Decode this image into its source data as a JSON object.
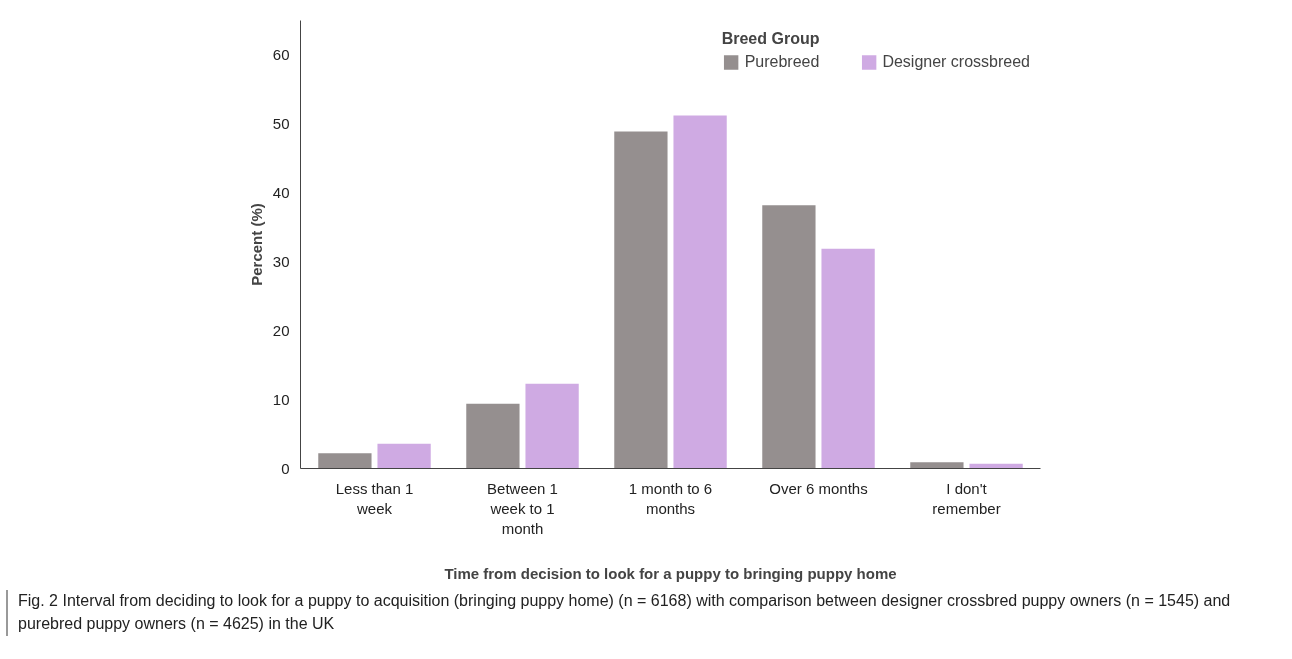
{
  "chart_data": {
    "type": "bar",
    "categories": [
      "Less than 1 week",
      "Between 1 week to 1 month",
      "1 month to 6 months",
      "Over 6 months",
      "I don't remember"
    ],
    "series": [
      {
        "name": "Purebreed",
        "color": "#958f8f",
        "values": [
          2.2,
          9.4,
          48.9,
          38.2,
          0.9
        ]
      },
      {
        "name": "Designer crossbreed",
        "color": "#cfaae3",
        "values": [
          3.6,
          12.3,
          51.2,
          31.9,
          0.7
        ]
      }
    ],
    "xlabel": "Time from decision to look for a puppy to bringing puppy home",
    "ylabel": "Percent (%)",
    "legend_title": "Breed Group",
    "legend": "top right",
    "grid": false,
    "ylim": [
      0,
      65
    ],
    "yticks": [
      0,
      10,
      20,
      30,
      40,
      50,
      60
    ],
    "annotations": [
      "Fig. 2 Interval from deciding to look for a puppy to acquisition (bringing puppy home) (n = 6168) with comparison between designer crossbred puppy owners (n = 1545) and purebred puppy owners (n = 4625) in the UK"
    ]
  }
}
